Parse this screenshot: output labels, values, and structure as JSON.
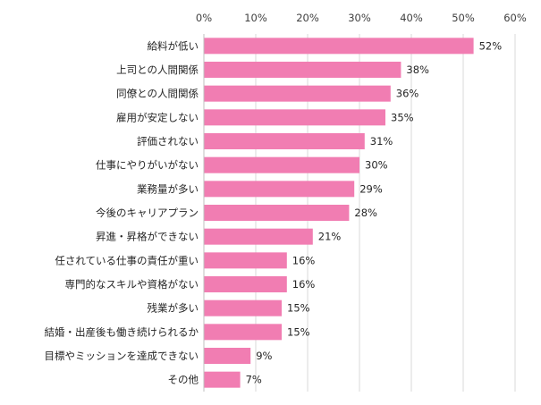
{
  "chart_data": {
    "type": "bar",
    "orientation": "horizontal",
    "title": "",
    "xlabel": "",
    "ylabel": "",
    "xlim": [
      0,
      60
    ],
    "grid": true,
    "legend": "none",
    "bar_color": "#F17DB2",
    "ticks": [
      "0%",
      "10%",
      "20%",
      "30%",
      "40%",
      "50%",
      "60%"
    ],
    "categories": [
      "給料が低い",
      "上司との人間関係",
      "同僚との人間関係",
      "雇用が安定しない",
      "評価されない",
      "仕事にやりがいがない",
      "業務量が多い",
      "今後のキャリアプラン",
      "昇進・昇格ができない",
      "任されている仕事の責任が重い",
      "専門的なスキルや資格がない",
      "残業が多い",
      "結婚・出産後も働き続けられるか",
      "目標やミッションを達成できない",
      "その他"
    ],
    "values": [
      52,
      38,
      36,
      35,
      31,
      30,
      29,
      28,
      21,
      16,
      16,
      15,
      15,
      9,
      7
    ],
    "value_labels": [
      "52%",
      "38%",
      "36%",
      "35%",
      "31%",
      "30%",
      "29%",
      "28%",
      "21%",
      "16%",
      "16%",
      "15%",
      "15%",
      "9%",
      "7%"
    ]
  }
}
